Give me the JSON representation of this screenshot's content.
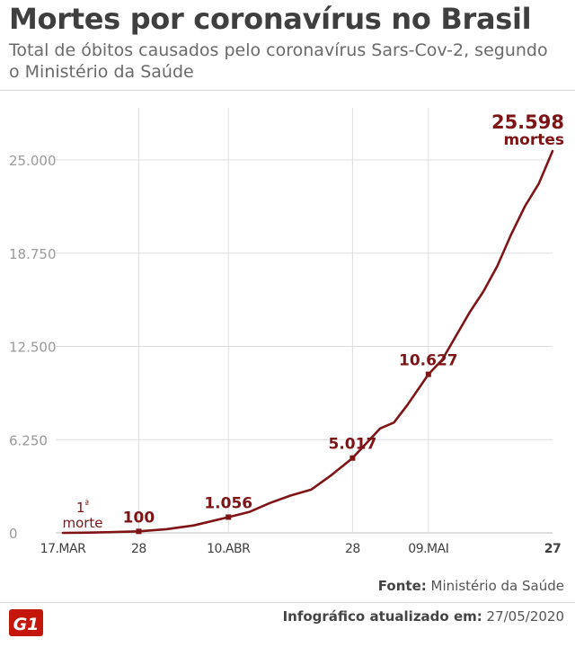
{
  "header": {
    "title": "Mortes por coronavírus no Brasil",
    "subtitle": "Total de óbitos causados pelo coronavírus Sars-Cov-2, segundo o Ministério da Saúde"
  },
  "footer": {
    "source_label": "Fonte:",
    "source_value": "Ministério da Saúde",
    "updated_label": "Infográfico atualizado em:",
    "updated_value": "27/05/2020",
    "logo_text": "G1"
  },
  "colors": {
    "series": "#7f1416",
    "text": "#3f3f3f",
    "axis_text": "#9a9a9a",
    "grid": "#dddddd",
    "logo": "#c4170c"
  },
  "chart_data": {
    "type": "line",
    "title": "Mortes por coronavírus no Brasil",
    "ylim": [
      0,
      25000
    ],
    "yticks": [
      0,
      6250,
      12500,
      18750,
      25000
    ],
    "ytick_labels": [
      "0",
      "6.250",
      "12.500",
      "18.750",
      "25.000"
    ],
    "xlim": [
      "2020-03-17",
      "2020-05-27"
    ],
    "xticks": [
      "2020-03-17",
      "2020-03-28",
      "2020-04-10",
      "2020-04-28",
      "2020-05-09",
      "2020-05-27"
    ],
    "xtick_labels": [
      "17.MAR",
      "28",
      "10.ABR",
      "28",
      "09.MAI",
      "27"
    ],
    "grid": "horizontal",
    "series": [
      {
        "x": [
          "2020-03-17",
          "2020-03-20",
          "2020-03-24",
          "2020-03-28",
          "2020-04-01",
          "2020-04-05",
          "2020-04-10",
          "2020-04-13",
          "2020-04-16",
          "2020-04-19",
          "2020-04-22",
          "2020-04-25",
          "2020-04-28",
          "2020-04-30",
          "2020-05-02",
          "2020-05-04",
          "2020-05-06",
          "2020-05-09",
          "2020-05-11",
          "2020-05-13",
          "2020-05-15",
          "2020-05-17",
          "2020-05-19",
          "2020-05-21",
          "2020-05-23",
          "2020-05-25",
          "2020-05-27"
        ],
        "values": [
          1,
          11,
          46,
          100,
          250,
          500,
          1056,
          1400,
          2000,
          2500,
          2900,
          3900,
          5017,
          6000,
          7000,
          7400,
          8600,
          10627,
          11600,
          13200,
          14800,
          16200,
          17900,
          20000,
          21900,
          23400,
          25598
        ]
      }
    ],
    "annotations": [
      {
        "x": "2020-03-17",
        "y": 1,
        "label": "1ª morte"
      },
      {
        "x": "2020-03-28",
        "y": 100,
        "label": "100"
      },
      {
        "x": "2020-04-10",
        "y": 1056,
        "label": "1.056"
      },
      {
        "x": "2020-04-28",
        "y": 5017,
        "label": "5.017"
      },
      {
        "x": "2020-05-09",
        "y": 10627,
        "label": "10.627"
      },
      {
        "x": "2020-05-27",
        "y": 25598,
        "label": "25.598",
        "sublabel": "mortes"
      }
    ]
  }
}
